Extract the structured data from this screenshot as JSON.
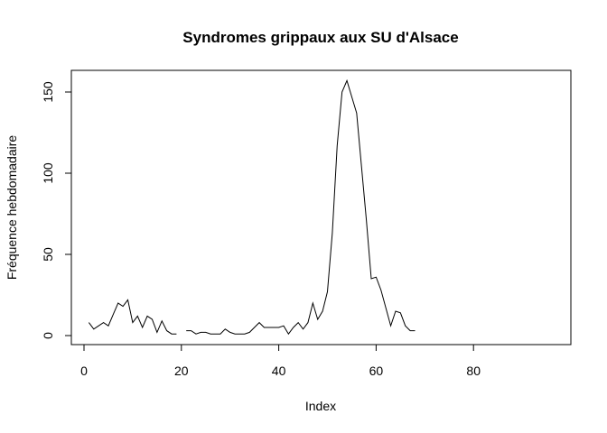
{
  "chart_data": {
    "type": "line",
    "title": "Syndromes grippaux aux SU d'Alsace",
    "xlabel": "Index",
    "ylabel": "Fréquence hebdomadaire",
    "xlim": [
      0,
      97
    ],
    "ylim": [
      0,
      157
    ],
    "xticks": [
      0,
      20,
      40,
      60,
      80
    ],
    "yticks": [
      0,
      50,
      100,
      150
    ],
    "grid": false,
    "legend": "none",
    "line_color": "#000000",
    "series": [
      {
        "x": [
          1,
          2,
          3,
          4,
          5,
          6,
          7,
          8,
          9,
          10,
          11,
          12,
          13,
          14,
          15,
          16,
          17,
          18,
          19,
          20,
          21,
          22,
          23,
          24,
          25,
          26,
          27,
          28,
          29,
          30,
          31,
          32,
          33,
          34,
          35,
          36,
          37,
          38,
          39,
          40,
          41,
          42,
          43,
          44,
          45,
          46,
          47,
          48,
          49,
          50,
          51,
          52,
          53,
          54,
          55,
          56,
          57,
          58,
          59,
          60,
          61,
          62,
          63,
          64,
          65,
          66,
          67,
          68
        ],
        "values": [
          8,
          4,
          6,
          8,
          6,
          13,
          20,
          18,
          22,
          8,
          12,
          5,
          12,
          10,
          2,
          9,
          3,
          1,
          1,
          null,
          3,
          3,
          1,
          2,
          2,
          1,
          1,
          1,
          4,
          2,
          1,
          1,
          1,
          2,
          5,
          8,
          5,
          5,
          5,
          5,
          6,
          1,
          5,
          8,
          4,
          8,
          20,
          10,
          15,
          27,
          63,
          117,
          150,
          157,
          147,
          137,
          104,
          71,
          35,
          36,
          28,
          17,
          6,
          15,
          14,
          6,
          3,
          3
        ]
      }
    ]
  }
}
